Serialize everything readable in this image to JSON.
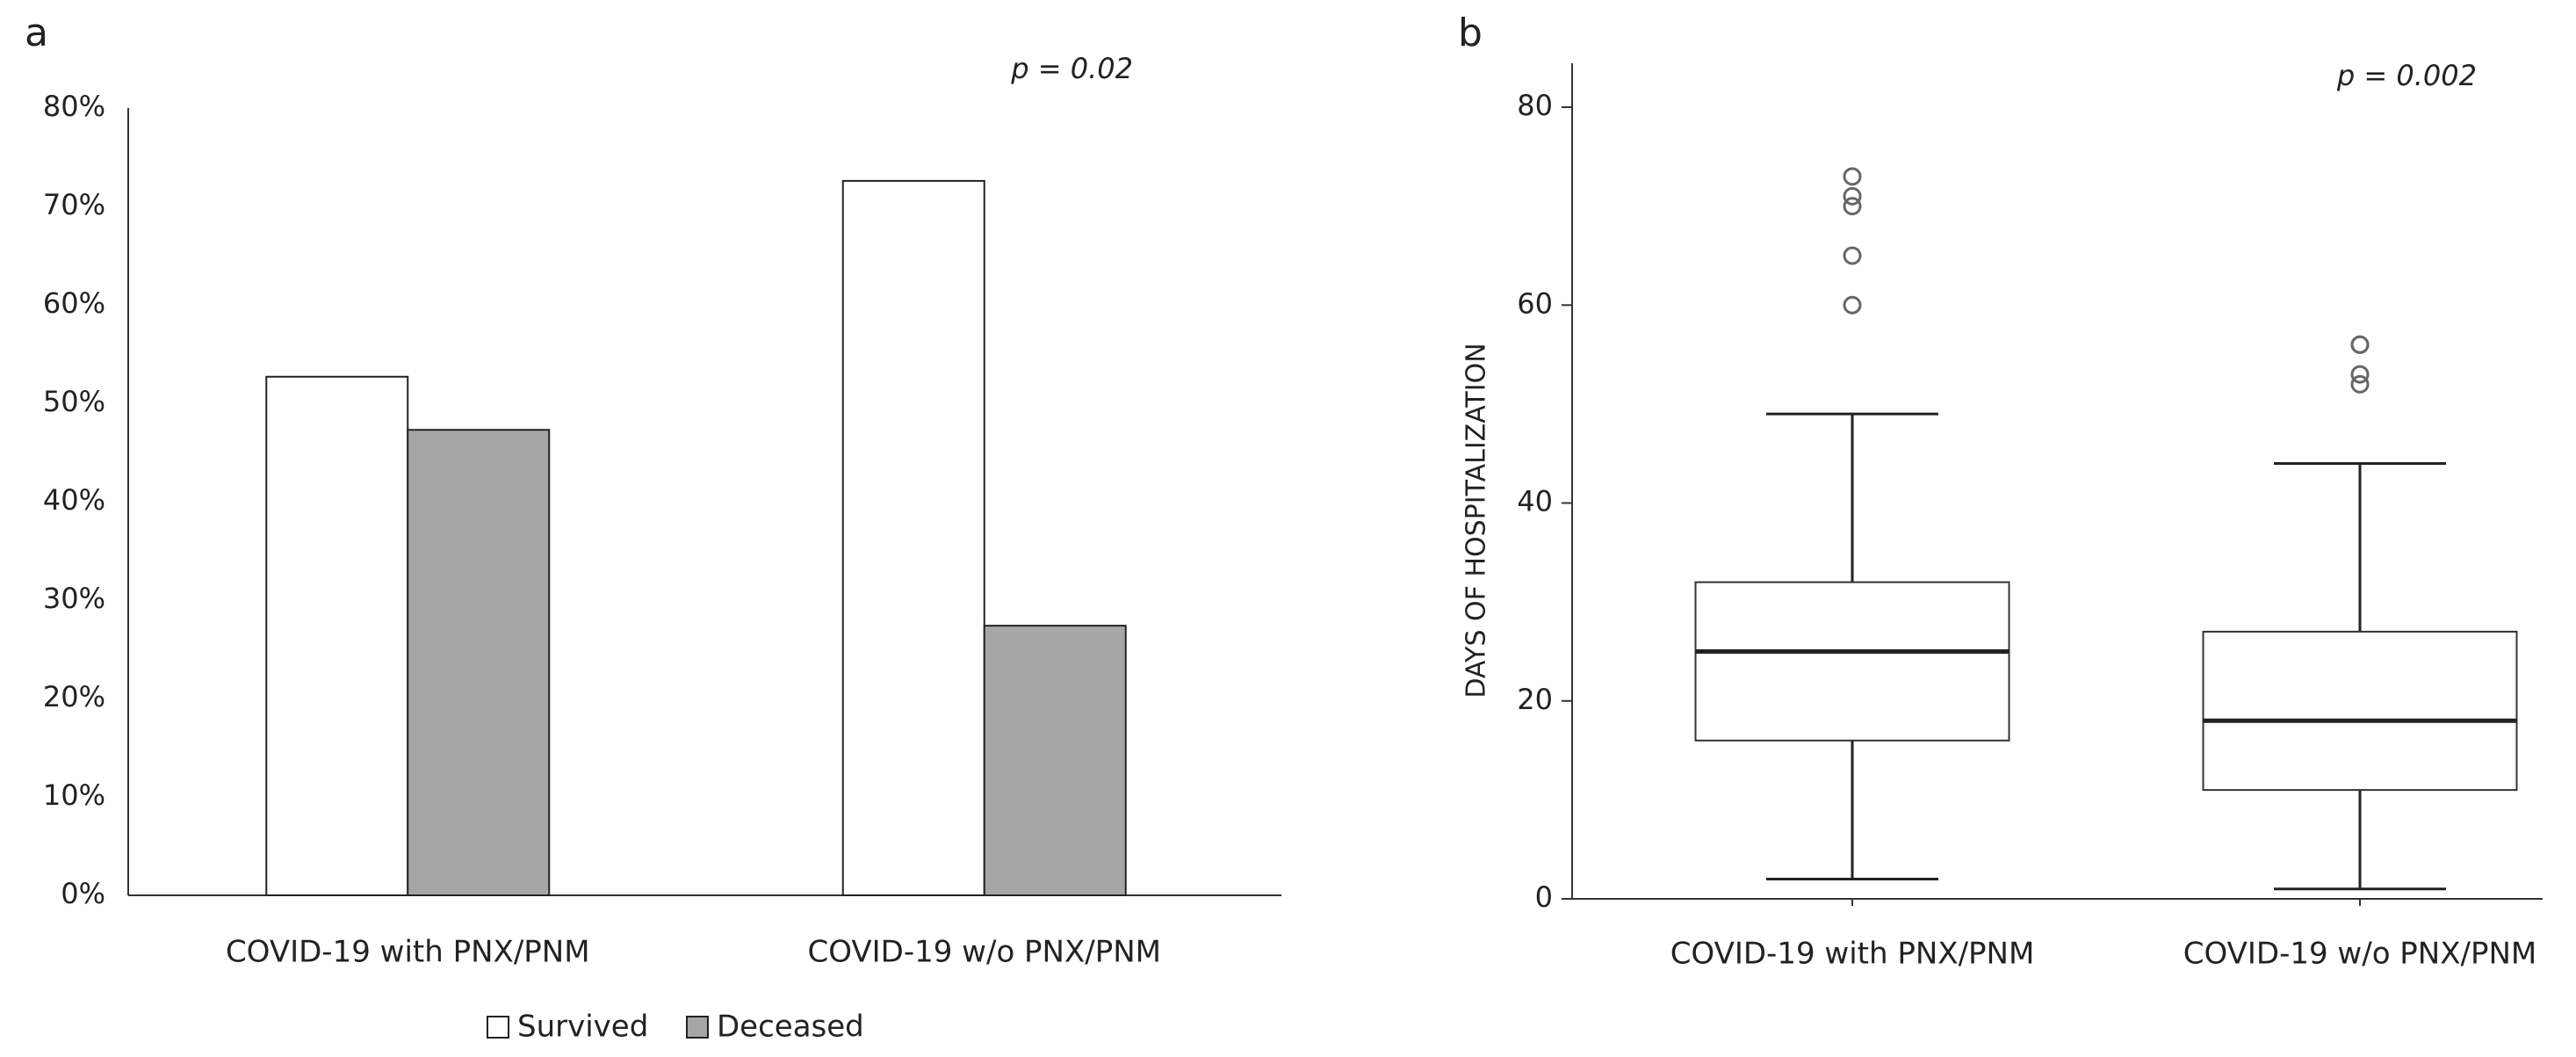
{
  "chart_data": [
    {
      "type": "bar",
      "panel": "a",
      "annotation": "p = 0.02",
      "categories": [
        "COVID-19 with PNX/PNM",
        "COVID-19 w/o PNX/PNM"
      ],
      "series": [
        {
          "name": "Survived",
          "color": "#ffffff",
          "values": [
            52.7,
            72.6
          ]
        },
        {
          "name": "Deceased",
          "color": "#a6a6a6",
          "values": [
            47.3,
            27.4
          ]
        }
      ],
      "ylim": [
        0,
        80
      ],
      "yticks": [
        {
          "value": 0,
          "label": "0%"
        },
        {
          "value": 10,
          "label": "10%"
        },
        {
          "value": 20,
          "label": "20%"
        },
        {
          "value": 30,
          "label": "30%"
        },
        {
          "value": 40,
          "label": "40%"
        },
        {
          "value": 50,
          "label": "50%"
        },
        {
          "value": 60,
          "label": "60%"
        },
        {
          "value": 70,
          "label": "70%"
        },
        {
          "value": 80,
          "label": "80%"
        }
      ],
      "legend": "bottom"
    },
    {
      "type": "box",
      "panel": "b",
      "annotation": "p = 0.002",
      "ylabel": "DAYS OF HOSPITALIZATION",
      "categories": [
        "COVID-19 with PNX/PNM",
        "COVID-19 w/o PNX/PNM"
      ],
      "whisker_low": [
        2,
        1
      ],
      "q1": [
        16,
        11
      ],
      "median": [
        25,
        18
      ],
      "q3": [
        32,
        27
      ],
      "whisker_high": [
        49,
        44
      ],
      "outliers": [
        [
          60,
          65,
          70,
          71,
          73
        ],
        [
          52,
          53,
          56,
          56
        ]
      ],
      "ylim": [
        0,
        80
      ],
      "yticks": [
        0,
        20,
        40,
        60,
        80
      ]
    }
  ]
}
